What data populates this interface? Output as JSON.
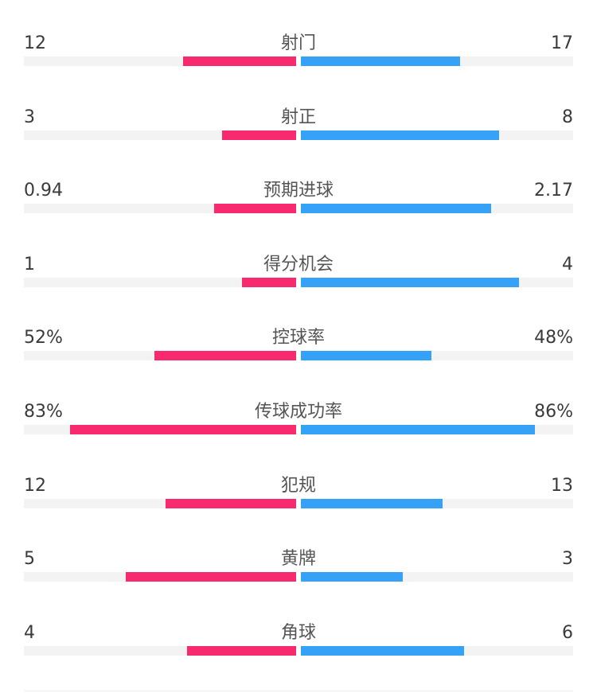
{
  "colors": {
    "home": "#f72a6f",
    "away": "#36a2f7",
    "track": "#f3f3f3"
  },
  "stats": [
    {
      "label": "射门",
      "home": "12",
      "away": "17",
      "home_share": 0.414,
      "away_share": 0.586
    },
    {
      "label": "射正",
      "home": "3",
      "away": "8",
      "home_share": 0.273,
      "away_share": 0.727
    },
    {
      "label": "预期进球",
      "home": "0.94",
      "away": "2.17",
      "home_share": 0.302,
      "away_share": 0.698
    },
    {
      "label": "得分机会",
      "home": "1",
      "away": "4",
      "home_share": 0.2,
      "away_share": 0.8
    },
    {
      "label": "控球率",
      "home": "52%",
      "away": "48%",
      "home_share": 0.52,
      "away_share": 0.48
    },
    {
      "label": "传球成功率",
      "home": "83%",
      "away": "86%",
      "home_share": 0.83,
      "away_share": 0.86
    },
    {
      "label": "犯规",
      "home": "12",
      "away": "13",
      "home_share": 0.48,
      "away_share": 0.52
    },
    {
      "label": "黄牌",
      "home": "5",
      "away": "3",
      "home_share": 0.625,
      "away_share": 0.375
    },
    {
      "label": "角球",
      "home": "4",
      "away": "6",
      "home_share": 0.4,
      "away_share": 0.6
    }
  ]
}
